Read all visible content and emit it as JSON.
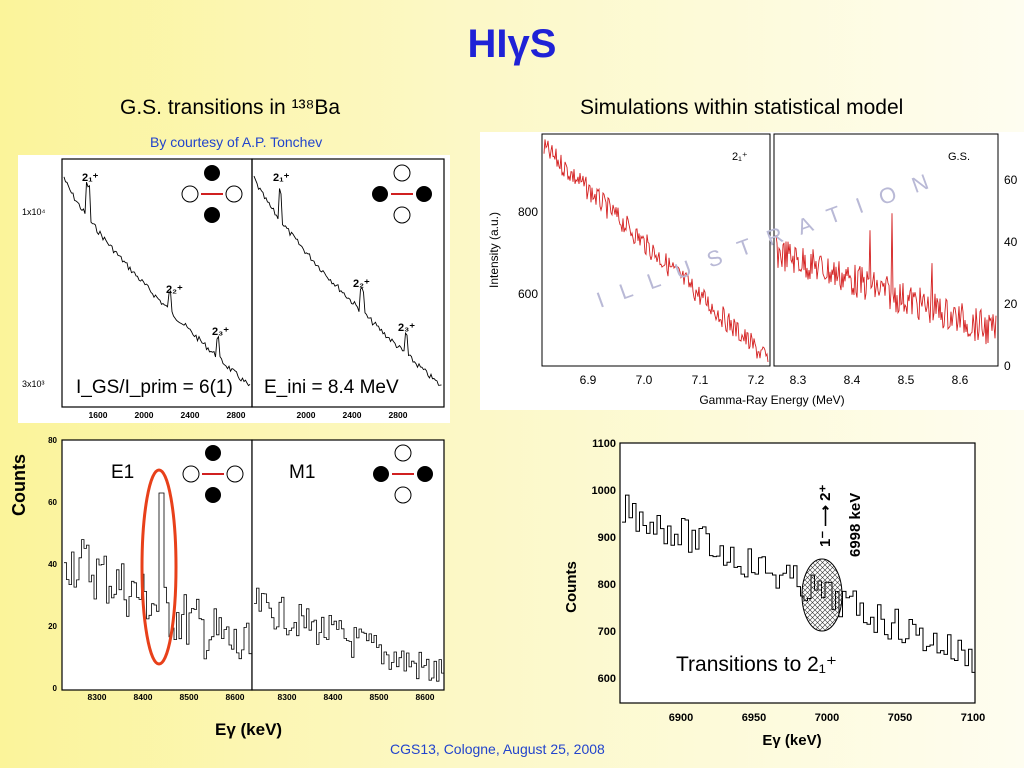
{
  "slide": {
    "title": "HIγS",
    "left_heading": "G.S. transitions in ¹³⁸Ba",
    "courtesy": "By courtesy of A.P. Tonchev",
    "right_heading": "Simulations within statistical model",
    "footer": "CGS13, Cologne, August 25, 2008",
    "watermark": "I L L U S T R A T I O N",
    "colors": {
      "title": "#1f22d6",
      "link": "#2244cc",
      "sim_line": "#d42020",
      "ellipse": "#e8401a"
    }
  },
  "top_left_figure": {
    "y_ticks": [
      "1x10⁴",
      "3x10³"
    ],
    "x_ticks": [
      "1600",
      "2000",
      "2400",
      "2800"
    ],
    "x_ticks_right": [
      "2000",
      "2400",
      "2800"
    ],
    "labels_left": [
      "2₁⁺",
      "2₂⁺",
      "2₃⁺"
    ],
    "labels_right": [
      "2₁⁺",
      "2₂⁺",
      "2₃⁺"
    ],
    "ratio_text": "I_GS/I_prim = 6(1)",
    "energy_text": "E_ini = 8.4 MeV"
  },
  "bottom_left_figure": {
    "y_label": "Counts",
    "y_ticks": [
      "80",
      "60",
      "40",
      "20",
      "0"
    ],
    "x_ticks_left": [
      "8300",
      "8400",
      "8500",
      "8600"
    ],
    "x_ticks_right": [
      "8300",
      "8400",
      "8500",
      "8600"
    ],
    "x_label": "Eγ (keV)",
    "panel_left": "E1",
    "panel_right": "M1"
  },
  "sim_figure": {
    "y_label": "Intensity (a.u.)",
    "x_label": "Gamma-Ray Energy (MeV)",
    "left_panel_label": "2₁⁺",
    "right_panel_label": "G.S.",
    "left_y_ticks": [
      "800",
      "600"
    ],
    "right_y_ticks": [
      "60",
      "40",
      "20",
      "0"
    ],
    "left_x_ticks": [
      "6.9",
      "7.0",
      "7.1",
      "7.2"
    ],
    "right_x_ticks": [
      "8.3",
      "8.4",
      "8.5",
      "8.6"
    ]
  },
  "bottom_right_figure": {
    "y_label": "Counts",
    "y_ticks": [
      "1100",
      "1000",
      "900",
      "800",
      "700",
      "600"
    ],
    "x_ticks": [
      "6900",
      "6950",
      "7000",
      "7050",
      "7100"
    ],
    "x_label": "Eγ (keV)",
    "transition_label": "1⁻ ⟶ 2⁺",
    "energy_label": "6998 keV",
    "caption": "Transitions to 2₁⁺"
  }
}
